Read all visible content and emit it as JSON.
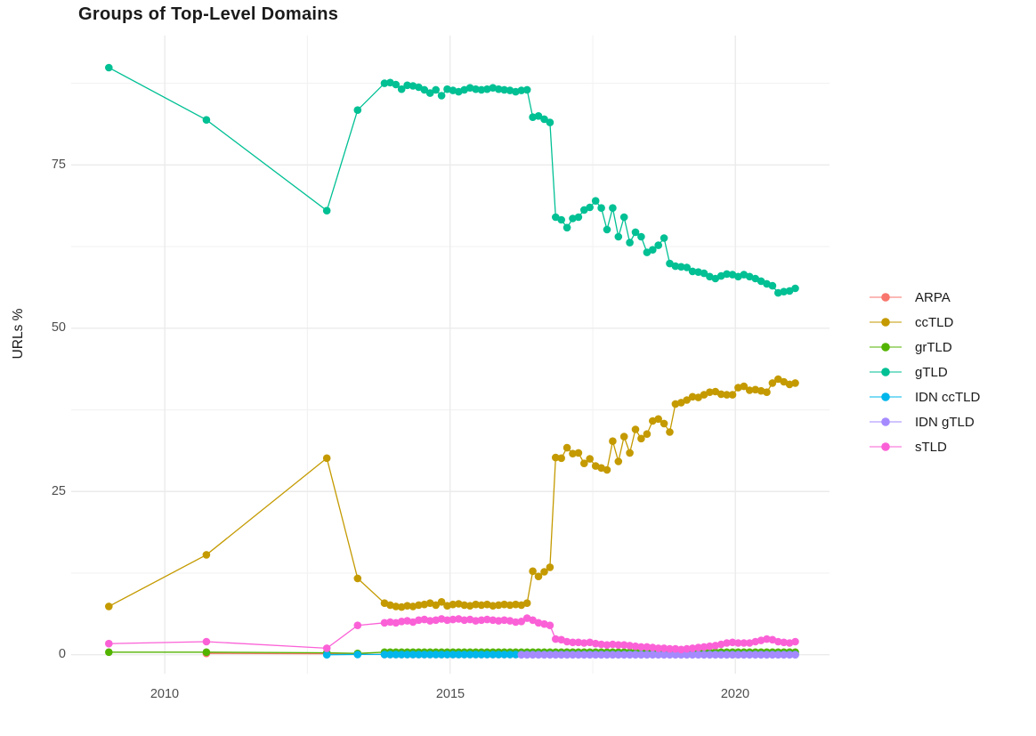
{
  "chart_data": {
    "type": "line",
    "title": "Groups of Top-Level Domains",
    "xlabel": "",
    "ylabel": "URLs %",
    "x_tick_labels": [
      "2010",
      "2015",
      "2020"
    ],
    "x_tick_years": [
      2010,
      2015,
      2020
    ],
    "x_minor": [
      2012.5,
      2017.5
    ],
    "y_tick_labels": [
      "0",
      "25",
      "50",
      "75"
    ],
    "y_ticks": [
      0,
      25,
      50,
      75
    ],
    "y_minor": [
      12.5,
      37.5,
      62.5,
      87.5
    ],
    "x_domain": [
      2008.36,
      2021.65
    ],
    "y_domain": [
      -2.9,
      94.8
    ],
    "grid": true,
    "legend_position": "right",
    "series": [
      {
        "name": "ARPA",
        "color": "#F8766D",
        "pre": [
          [
            2010.73,
            0.2
          ],
          [
            2012.84,
            0.15
          ],
          [
            2013.38,
            0.1
          ]
        ],
        "dense_start": 2013.85,
        "dense_step": 0.1,
        "dense_count": 73,
        "dense_y": 0.05
      },
      {
        "name": "ccTLD",
        "color": "#C49A00",
        "pre": [
          [
            2009.02,
            7.4
          ],
          [
            2010.73,
            15.3
          ],
          [
            2012.84,
            30.1
          ],
          [
            2013.38,
            11.7
          ]
        ],
        "dense_start": 2013.85,
        "dense_step": 0.1,
        "dense_y": [
          7.9,
          7.6,
          7.4,
          7.3,
          7.5,
          7.4,
          7.6,
          7.7,
          7.9,
          7.6,
          8.1,
          7.5,
          7.7,
          7.8,
          7.6,
          7.5,
          7.7,
          7.6,
          7.7,
          7.5,
          7.6,
          7.7,
          7.6,
          7.7,
          7.6,
          7.9,
          12.8,
          12.0,
          12.7,
          13.4,
          30.2,
          30.1,
          31.7,
          30.8,
          30.9,
          29.3,
          30.0,
          28.9,
          28.6,
          28.3,
          32.7,
          29.6,
          33.4,
          30.9,
          34.5,
          33.1,
          33.8,
          35.8,
          36.1,
          35.4,
          34.1,
          38.4,
          38.6,
          39.0,
          39.5,
          39.4,
          39.8,
          40.2,
          40.3,
          39.9,
          39.8,
          39.8,
          40.9,
          41.1,
          40.5,
          40.6,
          40.4,
          40.2,
          41.6,
          42.2,
          41.8,
          41.4,
          41.6
        ]
      },
      {
        "name": "grTLD",
        "color": "#53B400",
        "pre": [
          [
            2009.02,
            0.4
          ],
          [
            2010.73,
            0.4
          ],
          [
            2012.84,
            0.3
          ],
          [
            2013.38,
            0.2
          ]
        ],
        "dense_start": 2013.85,
        "dense_step": 0.1,
        "dense_count": 73,
        "dense_y": 0.4
      },
      {
        "name": "gTLD",
        "color": "#00C094",
        "pre": [
          [
            2009.02,
            89.9
          ],
          [
            2010.73,
            81.9
          ],
          [
            2012.84,
            68.0
          ],
          [
            2013.38,
            83.4
          ]
        ],
        "dense_start": 2013.85,
        "dense_step": 0.1,
        "dense_y": [
          87.5,
          87.6,
          87.3,
          86.6,
          87.2,
          87.1,
          86.9,
          86.5,
          86.0,
          86.5,
          85.6,
          86.6,
          86.4,
          86.2,
          86.5,
          86.8,
          86.6,
          86.5,
          86.6,
          86.8,
          86.6,
          86.5,
          86.4,
          86.2,
          86.4,
          86.5,
          82.3,
          82.5,
          82.0,
          81.5,
          67.0,
          66.6,
          65.4,
          66.8,
          67.0,
          68.1,
          68.5,
          69.5,
          68.4,
          65.1,
          68.4,
          64.0,
          67.0,
          63.1,
          64.7,
          64.0,
          61.6,
          62.0,
          62.7,
          63.8,
          59.9,
          59.5,
          59.4,
          59.3,
          58.7,
          58.6,
          58.4,
          57.9,
          57.6,
          58.0,
          58.3,
          58.2,
          57.9,
          58.2,
          57.9,
          57.6,
          57.2,
          56.8,
          56.5,
          55.4,
          55.6,
          55.7,
          56.1
        ]
      },
      {
        "name": "IDN ccTLD",
        "color": "#00B6EB",
        "pre": [
          [
            2012.84,
            0.0
          ],
          [
            2013.38,
            0.05
          ]
        ],
        "dense_start": 2013.85,
        "dense_step": 0.1,
        "dense_count": 73,
        "dense_y": 0.05
      },
      {
        "name": "IDN gTLD",
        "color": "#A58AFF",
        "pre": [],
        "dense_start": 2016.25,
        "dense_step": 0.1,
        "dense_count": 49,
        "dense_y": 0.0
      },
      {
        "name": "sTLD",
        "color": "#FB61D7",
        "pre": [
          [
            2009.02,
            1.7
          ],
          [
            2010.73,
            2.0
          ],
          [
            2012.84,
            1.0
          ],
          [
            2013.38,
            4.5
          ]
        ],
        "dense_start": 2013.85,
        "dense_step": 0.1,
        "dense_y": [
          4.9,
          5.0,
          4.9,
          5.1,
          5.2,
          5.0,
          5.3,
          5.4,
          5.2,
          5.3,
          5.5,
          5.3,
          5.4,
          5.5,
          5.3,
          5.4,
          5.2,
          5.3,
          5.4,
          5.3,
          5.2,
          5.3,
          5.2,
          5.0,
          5.1,
          5.6,
          5.3,
          4.9,
          4.7,
          4.5,
          2.4,
          2.3,
          2.0,
          1.9,
          1.9,
          1.8,
          1.9,
          1.7,
          1.6,
          1.5,
          1.6,
          1.5,
          1.5,
          1.4,
          1.3,
          1.2,
          1.2,
          1.1,
          1.0,
          1.0,
          0.9,
          0.9,
          0.8,
          0.9,
          1.0,
          1.1,
          1.2,
          1.3,
          1.4,
          1.6,
          1.8,
          1.9,
          1.8,
          1.8,
          1.8,
          2.0,
          2.2,
          2.4,
          2.3,
          2.0,
          1.9,
          1.8,
          2.0
        ]
      }
    ]
  }
}
